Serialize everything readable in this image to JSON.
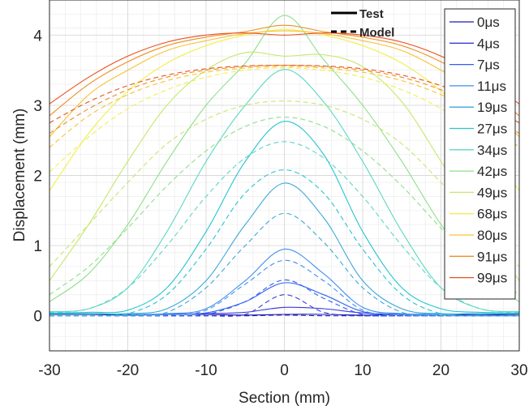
{
  "chart_data": {
    "type": "line",
    "xlabel": "Section (mm)",
    "ylabel": "Displacement (mm)",
    "xlim": [
      -30,
      30
    ],
    "ylim": [
      -0.5,
      4.5
    ],
    "x_ticks": [
      -30,
      -20,
      -10,
      0,
      10,
      20,
      30
    ],
    "y_ticks": [
      0,
      1,
      2,
      3,
      4
    ],
    "x_tick_labels": [
      "-30",
      "-20",
      "-10",
      "0",
      "10",
      "20",
      "30"
    ],
    "y_tick_labels": [
      "0",
      "1",
      "2",
      "3",
      "4"
    ],
    "grid": true,
    "minor_grid": true,
    "legend_position": "top-right",
    "style_legend": [
      {
        "label": "Test",
        "dash": "solid"
      },
      {
        "label": "Model",
        "dash": "dashed"
      }
    ],
    "x": [
      -30,
      -25,
      -20,
      -15,
      -10,
      -5,
      0,
      5,
      10,
      15,
      20,
      25,
      30
    ],
    "series": [
      {
        "name": "0μs",
        "color": "#1c1ab8",
        "test": [
          0.02,
          0.02,
          0.01,
          0.02,
          0.02,
          0.01,
          0.02,
          0.02,
          0.01,
          0.02,
          0.02,
          0.01,
          0.02
        ],
        "model": [
          0.0,
          0.0,
          0.0,
          0.0,
          0.0,
          0.0,
          0.01,
          0.0,
          0.0,
          0.0,
          0.0,
          0.0,
          0.0
        ]
      },
      {
        "name": "4μs",
        "color": "#3a3ad9",
        "test": [
          0.03,
          0.03,
          0.02,
          0.02,
          0.03,
          0.05,
          0.12,
          0.1,
          0.04,
          0.02,
          0.02,
          0.03,
          0.03
        ],
        "model": [
          0.0,
          0.0,
          0.0,
          0.0,
          0.0,
          0.02,
          0.3,
          0.05,
          0.0,
          0.0,
          0.0,
          0.0,
          0.0
        ]
      },
      {
        "name": "7μs",
        "color": "#2e5ff0",
        "test": [
          0.03,
          0.03,
          0.02,
          0.02,
          0.04,
          0.2,
          0.47,
          0.3,
          0.06,
          0.02,
          0.02,
          0.03,
          0.03
        ],
        "model": [
          0.0,
          0.0,
          0.0,
          0.0,
          0.02,
          0.2,
          0.51,
          0.25,
          0.02,
          0.0,
          0.0,
          0.0,
          0.0
        ]
      },
      {
        "name": "11μs",
        "color": "#3f8fef",
        "test": [
          0.03,
          0.03,
          0.02,
          0.03,
          0.1,
          0.5,
          0.95,
          0.6,
          0.12,
          0.03,
          0.02,
          0.03,
          0.03
        ],
        "model": [
          0.0,
          0.0,
          0.0,
          0.01,
          0.08,
          0.45,
          0.79,
          0.5,
          0.08,
          0.01,
          0.0,
          0.0,
          0.0
        ]
      },
      {
        "name": "19μs",
        "color": "#3aa9d8",
        "test": [
          0.03,
          0.03,
          0.03,
          0.1,
          0.5,
          1.3,
          1.89,
          1.4,
          0.5,
          0.1,
          0.03,
          0.03,
          0.03
        ],
        "model": [
          0.0,
          0.0,
          0.01,
          0.05,
          0.4,
          1.0,
          1.46,
          1.05,
          0.4,
          0.05,
          0.01,
          0.0,
          0.0
        ]
      },
      {
        "name": "27μs",
        "color": "#27c4cf",
        "test": [
          0.04,
          0.05,
          0.08,
          0.4,
          1.2,
          2.2,
          2.77,
          2.3,
          1.2,
          0.4,
          0.1,
          0.05,
          0.04
        ],
        "model": [
          0.0,
          0.0,
          0.03,
          0.3,
          0.95,
          1.75,
          2.08,
          1.75,
          0.95,
          0.3,
          0.03,
          0.0,
          0.0
        ]
      },
      {
        "name": "34μs",
        "color": "#5cd8c4",
        "test": [
          0.06,
          0.1,
          0.4,
          1.2,
          2.2,
          3.0,
          3.51,
          3.05,
          2.2,
          1.2,
          0.4,
          0.1,
          0.06
        ],
        "model": [
          0.05,
          0.1,
          0.4,
          1.0,
          1.7,
          2.25,
          2.48,
          2.25,
          1.7,
          1.0,
          0.4,
          0.1,
          0.05
        ]
      },
      {
        "name": "42μs",
        "color": "#8ee08a",
        "test": [
          0.2,
          0.6,
          1.3,
          2.2,
          3.0,
          3.6,
          4.28,
          3.65,
          3.0,
          2.2,
          1.3,
          0.6,
          0.2
        ],
        "model": [
          0.3,
          0.7,
          1.25,
          1.85,
          2.35,
          2.7,
          2.83,
          2.7,
          2.35,
          1.85,
          1.25,
          0.7,
          0.3
        ]
      },
      {
        "name": "49μs",
        "color": "#c4e86a",
        "test": [
          0.5,
          1.3,
          2.2,
          3.0,
          3.5,
          3.75,
          3.7,
          3.72,
          3.55,
          3.05,
          2.2,
          1.3,
          0.5
        ],
        "model": [
          0.7,
          1.3,
          1.9,
          2.45,
          2.8,
          3.0,
          3.06,
          3.0,
          2.8,
          2.45,
          1.9,
          1.3,
          0.7
        ]
      },
      {
        "name": "68μs",
        "color": "#f1ef4e",
        "test": [
          1.78,
          2.6,
          3.2,
          3.6,
          3.85,
          4.0,
          4.08,
          4.0,
          3.85,
          3.6,
          3.2,
          2.6,
          1.78
        ],
        "model": [
          2.05,
          2.55,
          2.95,
          3.22,
          3.4,
          3.5,
          3.53,
          3.5,
          3.4,
          3.22,
          2.95,
          2.55,
          2.05
        ]
      },
      {
        "name": "80μs",
        "color": "#f7c232",
        "test": [
          2.55,
          3.15,
          3.5,
          3.78,
          3.92,
          4.02,
          4.06,
          4.02,
          3.92,
          3.78,
          3.5,
          3.15,
          2.55
        ],
        "model": [
          2.4,
          2.85,
          3.15,
          3.35,
          3.47,
          3.53,
          3.55,
          3.53,
          3.47,
          3.35,
          3.15,
          2.85,
          2.4
        ]
      },
      {
        "name": "91μs",
        "color": "#f08c22",
        "test": [
          2.85,
          3.3,
          3.62,
          3.85,
          3.97,
          4.05,
          4.14,
          4.05,
          3.97,
          3.85,
          3.62,
          3.3,
          2.85
        ],
        "model": [
          2.6,
          2.95,
          3.22,
          3.4,
          3.5,
          3.55,
          3.57,
          3.55,
          3.5,
          3.4,
          3.22,
          2.95,
          2.6
        ]
      },
      {
        "name": "99μs",
        "color": "#e8501c",
        "test": [
          3.02,
          3.4,
          3.7,
          3.9,
          4.0,
          4.03,
          4.0,
          4.03,
          4.0,
          3.9,
          3.7,
          3.4,
          3.02
        ],
        "model": [
          2.75,
          3.05,
          3.28,
          3.43,
          3.52,
          3.56,
          3.57,
          3.56,
          3.52,
          3.43,
          3.28,
          3.05,
          2.75
        ]
      }
    ]
  }
}
